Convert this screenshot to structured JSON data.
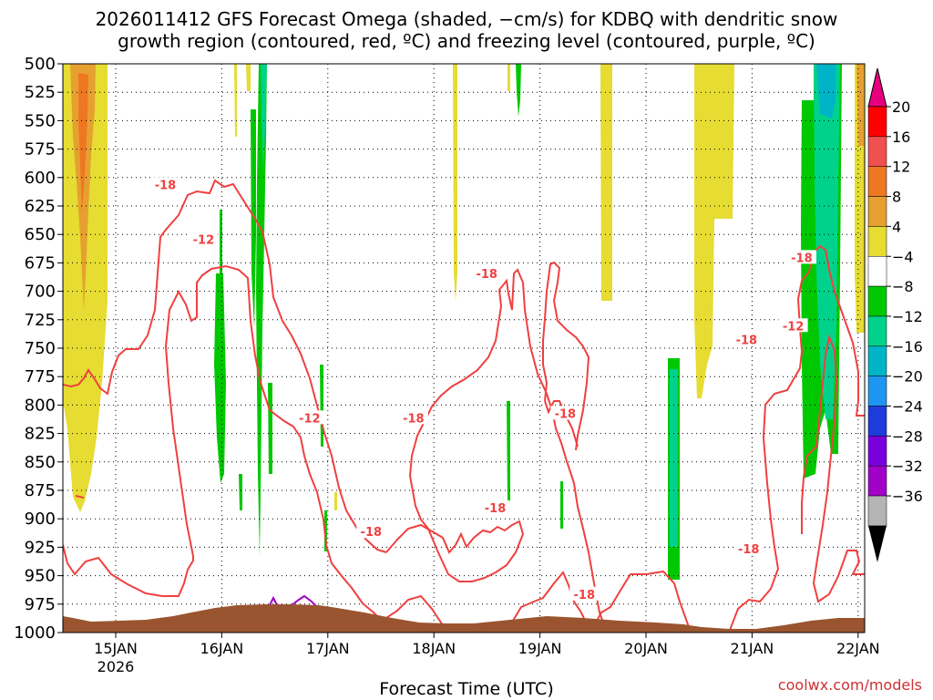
{
  "title_line1": "2026011412 GFS Forecast Omega (shaded, −cm/s) for KDBQ with dendritic snow",
  "title_line2": "growth region (contoured, red, ºC) and freezing level (contoured, purple, ºC)",
  "credit": "coolwx.com/models",
  "chart_data": {
    "type": "heatmap",
    "xlabel": "Forecast Time (UTC)",
    "ylim": [
      1000,
      500
    ],
    "x_ticks": [
      "15JAN",
      "16JAN",
      "17JAN",
      "18JAN",
      "19JAN",
      "20JAN",
      "21JAN",
      "22JAN"
    ],
    "x_tick_year": "2026",
    "y_ticks": [
      500,
      525,
      550,
      575,
      600,
      625,
      650,
      675,
      700,
      725,
      750,
      775,
      800,
      825,
      850,
      875,
      900,
      925,
      950,
      975,
      1000
    ],
    "colorbar": {
      "labels": [
        "20",
        "16",
        "12",
        "8",
        "4",
        "−4",
        "−8",
        "−12",
        "−16",
        "−20",
        "−24",
        "−28",
        "−32",
        "−36"
      ],
      "colors": [
        "#ff0000",
        "#f05050",
        "#ee7722",
        "#e6a030",
        "#e6dc32",
        "#ffffff",
        "#00c800",
        "#00d28c",
        "#00b4c8",
        "#1e96f0",
        "#1e3cdc",
        "#7800dc",
        "#a000c8",
        "#b4b4b4"
      ],
      "top_arrow_color": "#e6007e",
      "bottom_arrow_color": "#000000"
    },
    "contour_labels": [
      {
        "text": "-18",
        "t": 0.64,
        "p": 607
      },
      {
        "text": "-12",
        "t": 1.0,
        "p": 655
      },
      {
        "text": "-12",
        "t": 2.0,
        "p": 812
      },
      {
        "text": "-18",
        "t": 2.58,
        "p": 912
      },
      {
        "text": "-18",
        "t": 2.98,
        "p": 812
      },
      {
        "text": "-18",
        "t": 3.67,
        "p": 685
      },
      {
        "text": "-18",
        "t": 3.75,
        "p": 891
      },
      {
        "text": "-18",
        "t": 4.41,
        "p": 808
      },
      {
        "text": "-18",
        "t": 4.59,
        "p": 967
      },
      {
        "text": "-18",
        "t": 6.12,
        "p": 743
      },
      {
        "text": "-18",
        "t": 6.14,
        "p": 927
      },
      {
        "text": "-18",
        "t": 6.64,
        "p": 671
      },
      {
        "text": "-12",
        "t": 6.56,
        "p": 731
      }
    ],
    "terrain_color": "#9a5530",
    "contour_color": "#f04040",
    "freezing_level_color": "#a000c8",
    "grid": true
  }
}
